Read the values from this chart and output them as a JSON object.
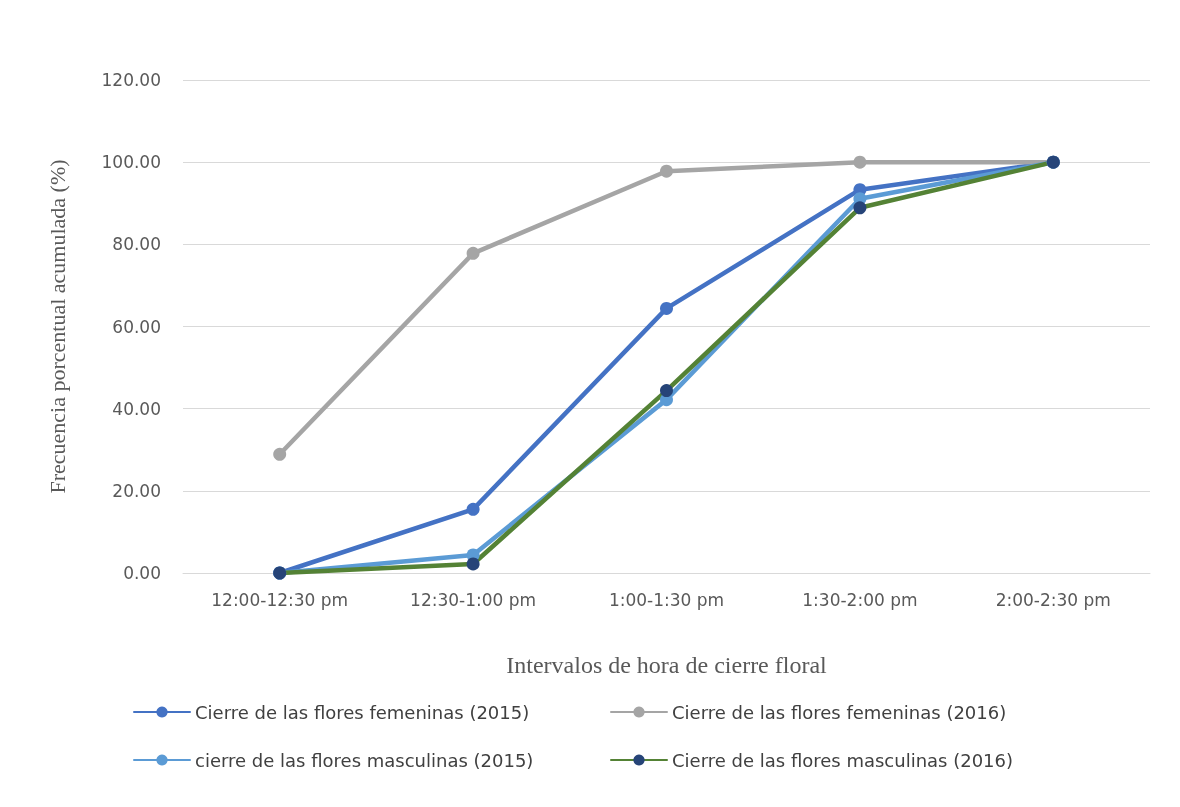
{
  "chart_data": {
    "type": "line",
    "xlabel": "Intervalos de hora de cierre floral",
    "ylabel": "Frecuencia porcentual acumulada (%)",
    "categories": [
      "12:00-12:30 pm",
      "12:30-1:00 pm",
      "1:00-1:30 pm",
      "1:30-2:00 pm",
      "2:00-2:30 pm"
    ],
    "series": [
      {
        "name": "Cierre de las flores femeninas (2015)",
        "color": "#4472c4",
        "values": [
          0,
          15.5,
          64.4,
          93.3,
          100
        ]
      },
      {
        "name": "Cierre de las flores femeninas (2016)",
        "color": "#a5a5a5",
        "values": [
          28.9,
          77.8,
          97.8,
          100,
          100
        ]
      },
      {
        "name": "cierre de las flores masculinas (2015)",
        "color": "#5b9bd5",
        "values": [
          0,
          4.4,
          42.2,
          91.1,
          100
        ]
      },
      {
        "name": "Cierre de las flores masculinas (2016)",
        "color": "#548235",
        "colors": [
          "#264478",
          "#264478",
          "#264478",
          "#264478",
          "#264478"
        ],
        "values": [
          0,
          2.2,
          44.4,
          88.9,
          100
        ]
      }
    ],
    "ylim": [
      0,
      120
    ],
    "yticks": [
      {
        "value": 0,
        "label": "0.00"
      },
      {
        "value": 20,
        "label": "20.00"
      },
      {
        "value": 40,
        "label": "40.00"
      },
      {
        "value": 60,
        "label": "60.00"
      },
      {
        "value": 80,
        "label": "80.00"
      },
      {
        "value": 100,
        "label": "100.00"
      },
      {
        "value": 120,
        "label": "120.00"
      }
    ],
    "grid": "y",
    "legend": "bottom",
    "marker": "circle",
    "line_style": "solid"
  }
}
